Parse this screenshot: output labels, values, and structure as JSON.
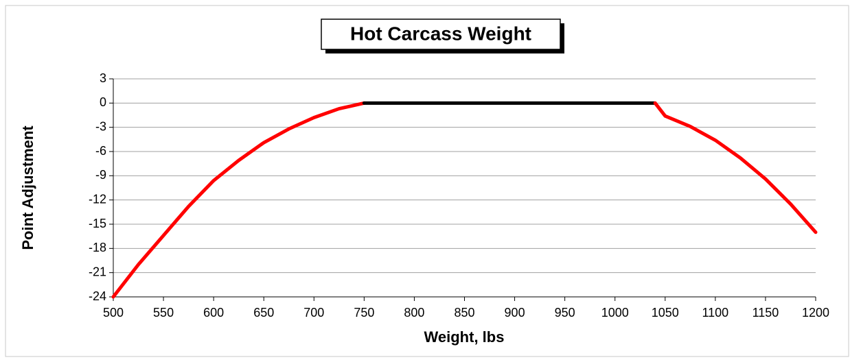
{
  "chart_data": {
    "type": "line",
    "title": "Hot Carcass Weight",
    "xlabel": "Weight, lbs",
    "ylabel": "Point Adjustment",
    "xlim": [
      500,
      1200
    ],
    "xticks": [
      500,
      550,
      600,
      650,
      700,
      750,
      800,
      850,
      900,
      950,
      1000,
      1050,
      1100,
      1150,
      1200
    ],
    "ylim": [
      -24,
      3
    ],
    "yticks": [
      3,
      0,
      -3,
      -6,
      -9,
      -12,
      -15,
      -18,
      -21,
      -24
    ],
    "grid": true,
    "series": [
      {
        "color": "#ff0000",
        "x": [
          500,
          525,
          550,
          575,
          600,
          625,
          650,
          675,
          700,
          725,
          750
        ],
        "values": [
          -24,
          -20,
          -16.4,
          -12.8,
          -9.6,
          -7.1,
          -4.9,
          -3.2,
          -1.8,
          -0.7,
          0
        ]
      },
      {
        "color": "#000000",
        "x": [
          750,
          1040
        ],
        "values": [
          0,
          0
        ]
      },
      {
        "color": "#ff0000",
        "x": [
          1040,
          1050,
          1075,
          1100,
          1125,
          1150,
          1175,
          1200
        ],
        "values": [
          0,
          -1.6,
          -2.9,
          -4.6,
          -6.8,
          -9.4,
          -12.5,
          -16
        ]
      }
    ]
  }
}
